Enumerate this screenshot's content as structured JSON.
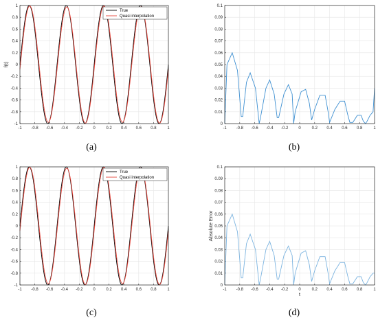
{
  "figure": {
    "captions": [
      "(a)",
      "(b)",
      "(c)",
      "(d)"
    ]
  },
  "chart_data": [
    {
      "panel": "a",
      "type": "line",
      "title": "",
      "xlabel": "",
      "ylabel": "f(t)",
      "xlim": [
        -1,
        1
      ],
      "ylim": [
        -1,
        1
      ],
      "xticks": [
        "-1",
        "-0.8",
        "-0.6",
        "-0.4",
        "-0.2",
        "0",
        "0.2",
        "0.4",
        "0.6",
        "0.8",
        "1"
      ],
      "yticks": [
        "-1",
        "-0.8",
        "-0.6",
        "-0.4",
        "-0.2",
        "0",
        "0.2",
        "0.4",
        "0.6",
        "0.8",
        "1"
      ],
      "grid": true,
      "legend": "top-right",
      "series": [
        {
          "name": "True",
          "color": "#000000",
          "function": "sin(4*pi*t)",
          "x_range": [
            -1,
            1
          ]
        },
        {
          "name": "Quasi interpolation",
          "color": "#e8443a",
          "function": "approximation of sin(4*pi*t)",
          "x_range": [
            -1,
            1
          ]
        }
      ]
    },
    {
      "panel": "b",
      "type": "line",
      "title": "",
      "xlabel": "",
      "ylabel": "",
      "xlim": [
        -1,
        1
      ],
      "ylim": [
        0,
        0.1
      ],
      "xticks": [
        "-1",
        "-0.8",
        "-0.6",
        "-0.4",
        "-0.2",
        "0",
        "0.2",
        "0.4",
        "0.6",
        "0.8",
        "1"
      ],
      "yticks": [
        "0",
        "0.01",
        "0.02",
        "0.03",
        "0.04",
        "0.05",
        "0.06",
        "0.07",
        "0.08",
        "0.09",
        "0.1"
      ],
      "grid": true,
      "series": [
        {
          "color": "#3d8fd1",
          "x": [
            -1.0,
            -0.97,
            -0.9,
            -0.83,
            -0.78,
            -0.76,
            -0.71,
            -0.66,
            -0.59,
            -0.54,
            -0.52,
            -0.45,
            -0.4,
            -0.34,
            -0.3,
            -0.28,
            -0.21,
            -0.15,
            -0.1,
            -0.08,
            -0.06,
            0.02,
            0.08,
            0.13,
            0.16,
            0.2,
            0.27,
            0.34,
            0.38,
            0.4,
            0.47,
            0.54,
            0.6,
            0.64,
            0.67,
            0.71,
            0.77,
            0.82,
            0.85,
            0.88,
            0.9,
            0.94,
            0.98,
            1.0
          ],
          "y": [
            0.0,
            0.05,
            0.06,
            0.045,
            0.006,
            0.006,
            0.035,
            0.043,
            0.03,
            0.0,
            0.006,
            0.03,
            0.037,
            0.025,
            0.005,
            0.005,
            0.025,
            0.033,
            0.025,
            0.0,
            0.01,
            0.027,
            0.029,
            0.017,
            0.003,
            0.012,
            0.024,
            0.024,
            0.01,
            0.001,
            0.012,
            0.019,
            0.019,
            0.008,
            0.001,
            0.001,
            0.007,
            0.007,
            0.002,
            0.0,
            0.002,
            0.007,
            0.01,
            0.03
          ]
        }
      ]
    },
    {
      "panel": "c",
      "type": "line",
      "title": "",
      "xlabel": "",
      "ylabel": "",
      "xlim": [
        -1,
        1
      ],
      "ylim": [
        -1,
        1
      ],
      "xticks": [
        "-1",
        "-0.8",
        "-0.6",
        "-0.4",
        "-0.2",
        "0",
        "0.2",
        "0.4",
        "0.6",
        "0.8",
        "1"
      ],
      "yticks": [
        "-1",
        "-0.8",
        "-0.6",
        "-0.4",
        "-0.2",
        "0",
        "0.2",
        "0.4",
        "0.6",
        "0.8",
        "1"
      ],
      "grid": true,
      "legend": "top-right",
      "series": [
        {
          "name": "True",
          "color": "#000000",
          "function": "sin(4*pi*t)",
          "x_range": [
            -1,
            1
          ]
        },
        {
          "name": "Quasi interpolation",
          "color": "#e8443a",
          "function": "approximation of sin(4*pi*t)",
          "x_range": [
            -1,
            1
          ]
        }
      ]
    },
    {
      "panel": "d",
      "type": "line",
      "title": "",
      "xlabel": "t",
      "ylabel": "Absolute Error",
      "xlim": [
        -1,
        1
      ],
      "ylim": [
        0,
        0.1
      ],
      "xticks": [
        "-1",
        "-0.8",
        "-0.6",
        "-0.4",
        "-0.2",
        "0",
        "0.2",
        "0.4",
        "0.6",
        "0.8",
        "1"
      ],
      "yticks": [
        "0",
        "0.01",
        "0.02",
        "0.03",
        "0.04",
        "0.05",
        "0.06",
        "0.07",
        "0.08",
        "0.09",
        "0.1"
      ],
      "grid": true,
      "series": [
        {
          "color": "#7cb4e0",
          "x": [
            -1.0,
            -0.97,
            -0.9,
            -0.83,
            -0.78,
            -0.76,
            -0.71,
            -0.66,
            -0.59,
            -0.54,
            -0.52,
            -0.45,
            -0.4,
            -0.34,
            -0.3,
            -0.28,
            -0.21,
            -0.15,
            -0.1,
            -0.08,
            -0.06,
            0.02,
            0.08,
            0.13,
            0.16,
            0.2,
            0.27,
            0.34,
            0.38,
            0.4,
            0.47,
            0.54,
            0.6,
            0.64,
            0.67,
            0.71,
            0.77,
            0.82,
            0.85,
            0.88,
            0.9,
            0.94,
            0.98,
            1.0
          ],
          "y": [
            0.0,
            0.05,
            0.06,
            0.045,
            0.006,
            0.006,
            0.035,
            0.043,
            0.03,
            0.0,
            0.006,
            0.03,
            0.037,
            0.025,
            0.005,
            0.005,
            0.025,
            0.033,
            0.025,
            0.0,
            0.01,
            0.027,
            0.029,
            0.017,
            0.003,
            0.012,
            0.024,
            0.024,
            0.01,
            0.001,
            0.012,
            0.019,
            0.019,
            0.008,
            0.001,
            0.001,
            0.007,
            0.007,
            0.002,
            0.0,
            0.002,
            0.007,
            0.01,
            0.01
          ]
        }
      ]
    }
  ]
}
